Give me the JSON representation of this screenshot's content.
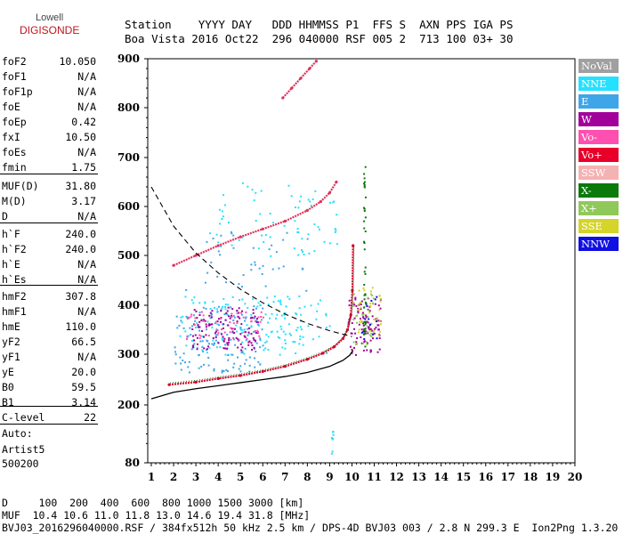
{
  "logo": {
    "line1": "Lowell",
    "line2": "DIGISONDE"
  },
  "header": {
    "row1": "Station    YYYY DAY   DDD HHMMSS P1  FFS S  AXN PPS IGA PS",
    "row2": "Boa Vista 2016 Oct22  296 040000 RSF 005 2  713 100 03+ 30"
  },
  "scalings": [
    {
      "name": "foF2",
      "value": "10.050"
    },
    {
      "name": "foF1",
      "value": "N/A"
    },
    {
      "name": "foF1p",
      "value": "N/A"
    },
    {
      "name": "foE",
      "value": "N/A"
    },
    {
      "name": "foEp",
      "value": "0.42"
    },
    {
      "name": "fxI",
      "value": "10.50"
    },
    {
      "name": "foEs",
      "value": "N/A"
    },
    {
      "name": "fmin",
      "value": "1.75"
    },
    {
      "name": "MUF(D)",
      "value": "31.80"
    },
    {
      "name": "M(D)",
      "value": "3.17"
    },
    {
      "name": "D",
      "value": "N/A"
    },
    {
      "name": "h`F",
      "value": "240.0"
    },
    {
      "name": "h`F2",
      "value": "240.0"
    },
    {
      "name": "h`E",
      "value": "N/A"
    },
    {
      "name": "h`Es",
      "value": "N/A"
    },
    {
      "name": "hmF2",
      "value": "307.8"
    },
    {
      "name": "hmF1",
      "value": "N/A"
    },
    {
      "name": "hmE",
      "value": "110.0"
    },
    {
      "name": "yF2",
      "value": "66.5"
    },
    {
      "name": "yF1",
      "value": "N/A"
    },
    {
      "name": "yE",
      "value": "20.0"
    },
    {
      "name": "B0",
      "value": "59.5"
    },
    {
      "name": "B1",
      "value": "3.14"
    },
    {
      "name": "C-level",
      "value": "22"
    }
  ],
  "auto": {
    "line1": "Auto:",
    "line2": "Artist5",
    "line3": "500200"
  },
  "legend": [
    {
      "label": "NoVal",
      "bg": "#a0a0a0",
      "fg": "#ffffff"
    },
    {
      "label": "NNE",
      "bg": "#26e0ff",
      "fg": "#ffffff"
    },
    {
      "label": "E",
      "bg": "#3ea6e8",
      "fg": "#ffffff"
    },
    {
      "label": "W",
      "bg": "#a2009a",
      "fg": "#ffffff"
    },
    {
      "label": "Vo-",
      "bg": "#ff4fb0",
      "fg": "#ffffff"
    },
    {
      "label": "Vo+",
      "bg": "#e8002a",
      "fg": "#ffffff"
    },
    {
      "label": "SSW",
      "bg": "#f4b2b2",
      "fg": "#ffffff"
    },
    {
      "label": "X-",
      "bg": "#0a7a0a",
      "fg": "#ffffff"
    },
    {
      "label": "X+",
      "bg": "#8fc95a",
      "fg": "#ffffff"
    },
    {
      "label": "SSE",
      "bg": "#d4d42a",
      "fg": "#ffffff"
    },
    {
      "label": "NNW",
      "bg": "#1010e0",
      "fg": "#ffffff"
    }
  ],
  "footer": {
    "line1": "D     100  200  400  600  800 1000 1500 3000 [km]",
    "line2": "MUF  10.4 10.6 11.0 11.8 13.0 14.6 19.4 31.8 [MHz]",
    "line3": "BVJ03_2016296040000.RSF / 384fx512h 50 kHz 2.5 km / DPS-4D BVJ03 003 / 2.8 N 299.3 E  Ion2Png 1.3.20"
  },
  "chart_data": {
    "type": "scatter",
    "xlim": [
      1,
      20
    ],
    "ylim": [
      80,
      900
    ],
    "x_ticks": [
      "1",
      "2",
      "3",
      "4",
      "5",
      "6",
      "7",
      "8",
      "9",
      "10",
      "11",
      "12",
      "13",
      "14",
      "15",
      "16",
      "17",
      "18",
      "19",
      "20"
    ],
    "y_ticks": [
      "80",
      "200",
      "300",
      "400",
      "500",
      "600",
      "700",
      "800",
      "900"
    ],
    "y_tick_values": [
      80,
      200,
      300,
      400,
      500,
      600,
      700,
      800,
      900
    ],
    "grid": false,
    "traces": [
      {
        "name": "trace-o-lower",
        "color": "#d4002a",
        "x": [
          1.8,
          3.0,
          4.0,
          5.0,
          6.0,
          7.0,
          8.0,
          8.7,
          9.2,
          9.6,
          9.8,
          9.95,
          10.02,
          10.05
        ],
        "y": [
          240,
          245,
          252,
          258,
          266,
          276,
          290,
          302,
          315,
          332,
          350,
          380,
          430,
          520
        ]
      },
      {
        "name": "trace-o-upper",
        "color": "#e0305a",
        "x": [
          2.0,
          3.0,
          4.0,
          5.0,
          6.0,
          7.0,
          8.0,
          8.6,
          9.0,
          9.3
        ],
        "y": [
          480,
          500,
          520,
          538,
          554,
          570,
          592,
          610,
          628,
          650
        ]
      },
      {
        "name": "trace-o-high",
        "color": "#e0305a",
        "x": [
          6.9,
          7.3,
          7.7,
          8.1,
          8.4
        ],
        "y": [
          820,
          840,
          860,
          880,
          895
        ]
      }
    ],
    "clusters": [
      {
        "name": "cluster-nne",
        "color": "#26e0ff",
        "xr": [
          2.2,
          9.0
        ],
        "yr": [
          300,
          420
        ],
        "n": 160
      },
      {
        "name": "cluster-e",
        "color": "#3ea6e8",
        "xr": [
          2.0,
          6.0
        ],
        "yr": [
          265,
          400
        ],
        "n": 140
      },
      {
        "name": "cluster-w",
        "color": "#a2009a",
        "xr": [
          2.8,
          5.8
        ],
        "yr": [
          310,
          400
        ],
        "n": 120
      },
      {
        "name": "cluster-vo-minus",
        "color": "#ff4fb0",
        "xr": [
          2.5,
          6.0
        ],
        "yr": [
          330,
          390
        ],
        "n": 50
      },
      {
        "name": "cluster-right",
        "color": "#a2009a",
        "xr": [
          9.8,
          11.3
        ],
        "yr": [
          300,
          420
        ],
        "n": 90
      },
      {
        "name": "cluster-right-yellow",
        "color": "#d4d42a",
        "xr": [
          10.2,
          11.3
        ],
        "yr": [
          340,
          440
        ],
        "n": 40
      },
      {
        "name": "cluster-right-green",
        "color": "#8fc95a",
        "xr": [
          10.0,
          11.0
        ],
        "yr": [
          320,
          430
        ],
        "n": 35
      },
      {
        "name": "cluster-right-blue",
        "color": "#1010e0",
        "xr": [
          10.4,
          11.2
        ],
        "yr": [
          330,
          420
        ],
        "n": 15
      },
      {
        "name": "cluster-upper-nne",
        "color": "#26e0ff",
        "xr": [
          3.5,
          9.3
        ],
        "yr": [
          500,
          650
        ],
        "n": 70
      },
      {
        "name": "cluster-upper-e",
        "color": "#3ea6e8",
        "xr": [
          2.5,
          8.0
        ],
        "yr": [
          430,
          560
        ],
        "n": 40
      }
    ],
    "vertical_dots": [
      {
        "name": "x-mode-column",
        "color": "#0a7a0a",
        "x": 10.5,
        "yr": [
          300,
          690
        ],
        "n": 40
      },
      {
        "name": "nne-column",
        "color": "#26e0ff",
        "x": 9.05,
        "yr": [
          80,
          160
        ],
        "n": 8
      }
    ],
    "profile_curve": {
      "color": "#000000",
      "x": [
        1.0,
        2.0,
        3.0,
        4.0,
        5.0,
        6.0,
        7.0,
        8.0,
        9.0,
        9.6,
        9.9,
        10.05
      ],
      "y": [
        212,
        225,
        232,
        238,
        244,
        250,
        256,
        264,
        276,
        288,
        298,
        308
      ]
    },
    "muf_curve": {
      "color": "#000000",
      "dashed": true,
      "x": [
        1.0,
        2.0,
        3.0,
        4.0,
        5.0,
        6.0,
        7.0,
        8.0,
        9.0,
        10.0
      ],
      "y": [
        640,
        560,
        505,
        465,
        432,
        405,
        382,
        363,
        348,
        336
      ]
    }
  }
}
